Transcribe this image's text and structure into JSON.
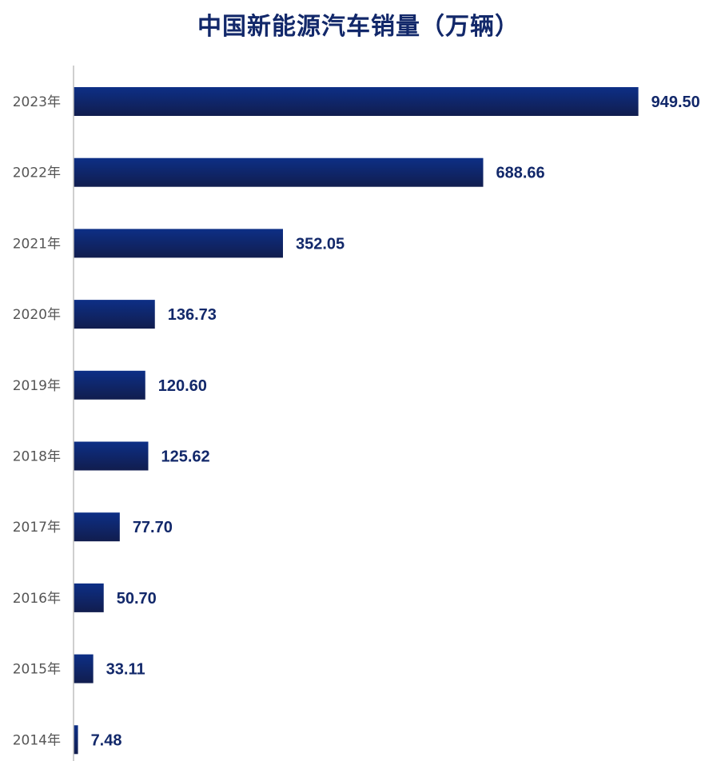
{
  "chart_data": {
    "type": "bar",
    "orientation": "horizontal",
    "title": "中国新能源汽车销量（万辆）",
    "categories": [
      "2023年",
      "2022年",
      "2021年",
      "2020年",
      "2019年",
      "2018年",
      "2017年",
      "2016年",
      "2015年",
      "2014年"
    ],
    "values": [
      949.5,
      688.66,
      352.05,
      136.73,
      120.6,
      125.62,
      77.7,
      50.7,
      33.11,
      7.48
    ],
    "value_labels": [
      "949.50",
      "688.66",
      "352.05",
      "136.73",
      "120.60",
      "125.62",
      "77.70",
      "50.70",
      "33.11",
      "7.48"
    ],
    "xlim": [
      0,
      950
    ],
    "xlabel": "",
    "ylabel": "",
    "grid": false,
    "legend": "none",
    "colors": {
      "bar_top": "#0d2f86",
      "bar_bottom": "#111d4e",
      "label": "#12286a",
      "axis": "#bfbfbf",
      "tick": "#555555"
    }
  }
}
